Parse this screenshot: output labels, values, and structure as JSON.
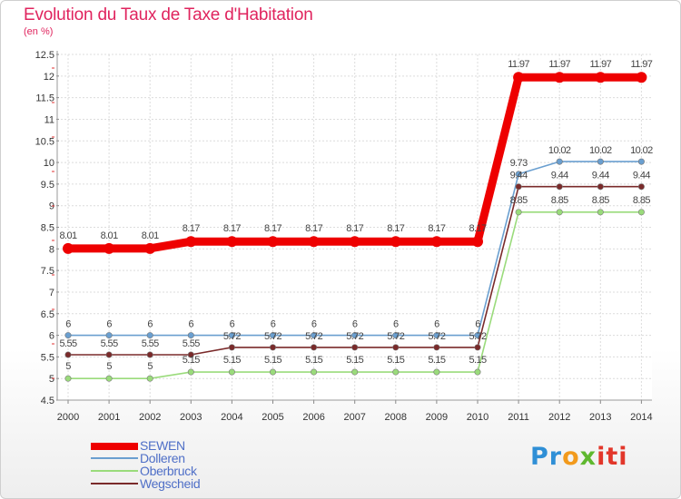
{
  "chart_data": {
    "type": "line",
    "title": "Evolution du Taux de Taxe d'Habitation",
    "subtitle": "(en %)",
    "x": [
      "2000",
      "2001",
      "2002",
      "2003",
      "2004",
      "2005",
      "2006",
      "2007",
      "2008",
      "2009",
      "2010",
      "2011",
      "2012",
      "2013",
      "2014"
    ],
    "ylim": [
      4.5,
      12.5
    ],
    "yticks": [
      "4.5",
      "5",
      "5.5",
      "6",
      "6.5",
      "7",
      "7.5",
      "8",
      "8.5",
      "9",
      "9.5",
      "10",
      "10.5",
      "11",
      "11.5",
      "12",
      "12.5"
    ],
    "grid": true,
    "legend_position": "bottom-left",
    "series": [
      {
        "name": "SEWEN",
        "color": "#ee0000",
        "values": [
          8.01,
          8.01,
          8.01,
          8.17,
          8.17,
          8.17,
          8.17,
          8.17,
          8.17,
          8.17,
          8.17,
          11.97,
          11.97,
          11.97,
          11.97
        ],
        "labels": [
          "8.01",
          "8.01",
          "8.01",
          "8.17",
          "8.17",
          "8.17",
          "8.17",
          "8.17",
          "8.17",
          "8.17",
          "8.17",
          "11.97",
          "11.97",
          "11.97",
          "11.97"
        ]
      },
      {
        "name": "Dolleren",
        "color": "#6a9fd0",
        "values": [
          6,
          6,
          6,
          6,
          6,
          6,
          6,
          6,
          6,
          6,
          6,
          9.73,
          10.02,
          10.02,
          10.02
        ],
        "labels": [
          "6",
          "6",
          "6",
          "6",
          "6",
          "6",
          "6",
          "6",
          "6",
          "6",
          "6",
          "9.73",
          "10.02",
          "10.02",
          "10.02"
        ]
      },
      {
        "name": "Oberbruck",
        "color": "#9adb7b",
        "values": [
          5,
          5,
          5,
          5.15,
          5.15,
          5.15,
          5.15,
          5.15,
          5.15,
          5.15,
          5.15,
          8.85,
          8.85,
          8.85,
          8.85
        ],
        "labels": [
          "5",
          "5",
          "5",
          "5.15",
          "5.15",
          "5.15",
          "5.15",
          "5.15",
          "5.15",
          "5.15",
          "5.15",
          "8.85",
          "8.85",
          "8.85",
          "8.85"
        ]
      },
      {
        "name": "Wegscheid",
        "color": "#7a2a2a",
        "values": [
          5.55,
          5.55,
          5.55,
          5.55,
          5.72,
          5.72,
          5.72,
          5.72,
          5.72,
          5.72,
          5.72,
          9.44,
          9.44,
          9.44,
          9.44
        ],
        "labels": [
          "5.55",
          "5.55",
          "5.55",
          "5.55",
          "5.72",
          "5.72",
          "5.72",
          "5.72",
          "5.72",
          "5.72",
          "5.72",
          "9.44",
          "9.44",
          "9.44",
          "9.44"
        ]
      }
    ]
  },
  "logo": {
    "part1": "Pr",
    "part2": "o",
    "part3": "x",
    "part4": "iti"
  }
}
